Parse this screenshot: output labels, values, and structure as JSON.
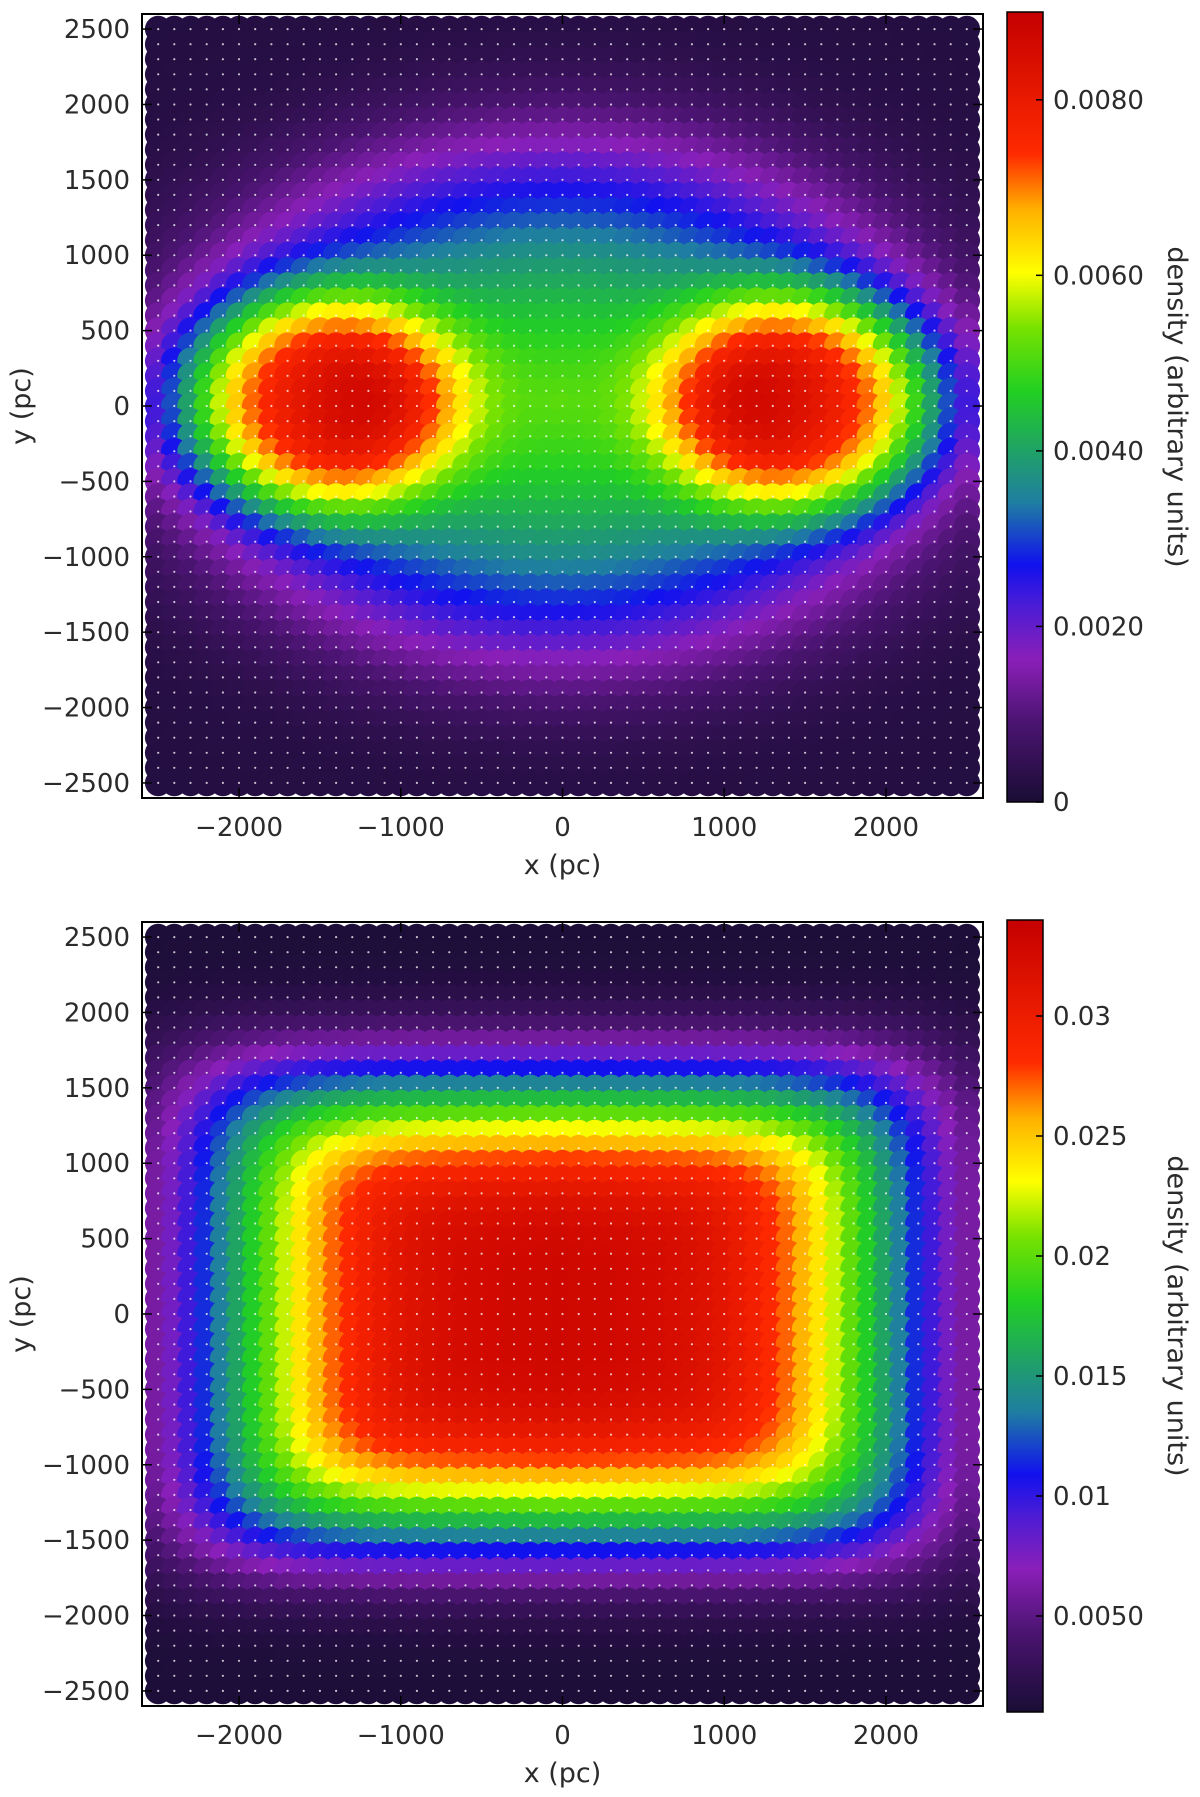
{
  "chart_data": [
    {
      "type": "heatmap",
      "title": "",
      "xlabel": "x (pc)",
      "ylabel": "y (pc)",
      "xlim": [
        -2600,
        2600
      ],
      "ylim": [
        -2600,
        2600
      ],
      "x_ticks": [
        -2000,
        -1000,
        0,
        1000,
        2000
      ],
      "x_tick_labels": [
        "−2000",
        "−1000",
        "0",
        "1000",
        "2000"
      ],
      "y_ticks": [
        2500,
        2000,
        1500,
        1000,
        500,
        0,
        -500,
        -1000,
        -1500,
        -2000,
        -2500
      ],
      "y_tick_labels": [
        "2500",
        "2000",
        "1500",
        "1000",
        "500",
        "0",
        "−500",
        "−1000",
        "−1500",
        "−2000",
        "−2500"
      ],
      "grid_points": {
        "start": -2500,
        "end": 2500,
        "step": 100
      },
      "colorbar": {
        "label": "density (arbitrary units)",
        "min": 0,
        "max": 0.009,
        "ticks": [
          0,
          0.002,
          0.004,
          0.006,
          0.008
        ],
        "tick_labels": [
          "0",
          "0.0020",
          "0.0040",
          "0.0060",
          "0.0080"
        ]
      },
      "density_model": {
        "description_of_pattern": "two elliptical density peaks on the x axis",
        "peaks": [
          {
            "x": -1500,
            "y": 0,
            "peak_value": 0.009
          },
          {
            "x": 1500,
            "y": 0,
            "peak_value": 0.009
          }
        ],
        "center_value": 0.0035,
        "edge_value": 0.0003
      }
    },
    {
      "type": "heatmap",
      "title": "",
      "xlabel": "x (pc)",
      "ylabel": "y (pc)",
      "xlim": [
        -2600,
        2600
      ],
      "ylim": [
        -2600,
        2600
      ],
      "x_ticks": [
        -2000,
        -1000,
        0,
        1000,
        2000
      ],
      "x_tick_labels": [
        "−2000",
        "−1000",
        "0",
        "1000",
        "2000"
      ],
      "y_ticks": [
        2500,
        2000,
        1500,
        1000,
        500,
        0,
        -500,
        -1000,
        -1500,
        -2000,
        -2500
      ],
      "y_tick_labels": [
        "2500",
        "2000",
        "1500",
        "1000",
        "500",
        "0",
        "−500",
        "−1000",
        "−1500",
        "−2000",
        "−2500"
      ],
      "grid_points": {
        "start": -2500,
        "end": 2500,
        "step": 100
      },
      "colorbar": {
        "label": "density (arbitrary units)",
        "min": 0.001,
        "max": 0.034,
        "ticks": [
          0.005,
          0.01,
          0.015,
          0.02,
          0.025,
          0.03
        ],
        "tick_labels": [
          "0.0050",
          "0.01",
          "0.015",
          "0.02",
          "0.025",
          "0.03"
        ]
      },
      "density_model": {
        "description_of_pattern": "rounded rectangular plateau centered on origin",
        "plateau": {
          "x_half_width": 1600,
          "y_half_width": 900,
          "peak_value": 0.033
        },
        "edge_value": 0.0012
      }
    }
  ],
  "colormap": {
    "stops": [
      {
        "t": 0.0,
        "color": "#1a0d35"
      },
      {
        "t": 0.1,
        "color": "#4a1470"
      },
      {
        "t": 0.18,
        "color": "#8a1fb8"
      },
      {
        "t": 0.25,
        "color": "#4a1cd6"
      },
      {
        "t": 0.3,
        "color": "#1111ee"
      },
      {
        "t": 0.38,
        "color": "#1f7fa0"
      },
      {
        "t": 0.44,
        "color": "#1f9f6a"
      },
      {
        "t": 0.52,
        "color": "#22d022"
      },
      {
        "t": 0.6,
        "color": "#77e200"
      },
      {
        "t": 0.67,
        "color": "#ffff00"
      },
      {
        "t": 0.75,
        "color": "#ffb000"
      },
      {
        "t": 0.82,
        "color": "#ff2a00"
      },
      {
        "t": 1.0,
        "color": "#c40000"
      }
    ]
  }
}
